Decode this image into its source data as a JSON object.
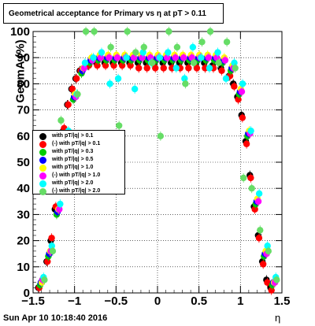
{
  "header": {
    "title": "Geometrical acceptance for Primary vs   η at pT > 0.11"
  },
  "footer": {
    "timestamp": "Sun Apr 10 10:18:40 2016"
  },
  "chart_data": {
    "type": "scatter",
    "title": "Geometrical acceptance for Primary vs   η at pT > 0.11",
    "xlabel": "η",
    "ylabel": "GeomA (%)",
    "xlim": [
      -1.5,
      1.5
    ],
    "ylim": [
      0,
      100
    ],
    "xticks": [
      -1.5,
      -1,
      -0.5,
      0,
      0.5,
      1,
      1.5
    ],
    "xtick_labels": [
      "−1.5",
      "−1",
      "−0.5",
      "0",
      "0.5",
      "1",
      "1.5"
    ],
    "yticks": [
      0,
      10,
      20,
      30,
      40,
      50,
      60,
      70,
      80,
      90,
      100
    ],
    "grid": true,
    "legend_position": "left-middle",
    "series": [
      {
        "name": "with pT/|q| > 0.1",
        "color": "#000000",
        "x": [
          -1.4,
          -1.35,
          -1.3,
          -1.25,
          -1.2,
          -1.15,
          -1.1,
          -1.05,
          -1.0,
          -0.95,
          -0.9,
          -0.8,
          -0.7,
          -0.6,
          -0.5,
          -0.4,
          -0.3,
          -0.2,
          -0.1,
          0.0,
          0.1,
          0.2,
          0.3,
          0.4,
          0.5,
          0.6,
          0.7,
          0.8,
          0.9,
          0.95,
          1.0,
          1.05,
          1.1,
          1.15,
          1.2,
          1.25,
          1.3,
          1.35,
          1.4
        ],
        "y": [
          2,
          5,
          12,
          20,
          32,
          48,
          62,
          72,
          78,
          82,
          85,
          87,
          88,
          88,
          88,
          88,
          88,
          88,
          88,
          88,
          88,
          88,
          88,
          88,
          88,
          88,
          87,
          86,
          83,
          80,
          75,
          68,
          58,
          45,
          33,
          22,
          12,
          5,
          2
        ]
      },
      {
        "name": "(-) with pT/|q| > 0.1",
        "color": "#ff0000",
        "x": [
          -1.4,
          -1.35,
          -1.3,
          -1.25,
          -1.2,
          -1.15,
          -1.1,
          -1.05,
          -1.0,
          -0.95,
          -0.9,
          -0.8,
          -0.7,
          -0.6,
          -0.5,
          -0.4,
          -0.3,
          -0.2,
          -0.1,
          0.0,
          0.1,
          0.2,
          0.3,
          0.4,
          0.5,
          0.6,
          0.7,
          0.8,
          0.9,
          0.95,
          1.0,
          1.05,
          1.1,
          1.15,
          1.2,
          1.25,
          1.3,
          1.35,
          1.4
        ],
        "y": [
          2,
          5,
          12,
          21,
          33,
          49,
          63,
          72,
          78,
          82,
          85,
          87,
          87,
          87,
          87,
          87,
          87,
          86,
          86,
          86,
          86,
          86,
          86,
          86,
          86,
          86,
          86,
          85,
          83,
          79,
          74,
          67,
          57,
          44,
          32,
          21,
          11,
          4,
          1
        ]
      },
      {
        "name": "with pT/|q| > 0.3",
        "color": "#00cc00",
        "x": [
          -1.4,
          -1.3,
          -1.2,
          -1.1,
          -1.0,
          -0.9,
          -0.8,
          -0.7,
          -0.6,
          -0.5,
          -0.4,
          -0.3,
          -0.2,
          -0.1,
          0.0,
          0.1,
          0.2,
          0.3,
          0.4,
          0.5,
          0.6,
          0.7,
          0.8,
          0.9,
          1.0,
          1.1,
          1.2,
          1.3,
          1.4
        ],
        "y": [
          3,
          14,
          30,
          58,
          74,
          84,
          88,
          89,
          89,
          89,
          89,
          89,
          89,
          89,
          89,
          89,
          89,
          89,
          89,
          89,
          89,
          89,
          88,
          85,
          76,
          60,
          34,
          14,
          3
        ]
      },
      {
        "name": "with pT/|q| > 0.5",
        "color": "#0000ff",
        "x": [
          -1.4,
          -1.3,
          -1.2,
          -1.1,
          -1.0,
          -0.9,
          -0.8,
          -0.7,
          -0.6,
          -0.5,
          -0.4,
          -0.3,
          -0.2,
          -0.1,
          0.0,
          0.1,
          0.2,
          0.3,
          0.4,
          0.5,
          0.6,
          0.7,
          0.8,
          0.9,
          1.0,
          1.1,
          1.2,
          1.3,
          1.4
        ],
        "y": [
          4,
          15,
          31,
          59,
          75,
          85,
          89,
          90,
          90,
          90,
          90,
          90,
          90,
          90,
          90,
          90,
          90,
          90,
          90,
          90,
          90,
          90,
          89,
          86,
          77,
          61,
          35,
          15,
          4
        ]
      },
      {
        "name": "with pT/|q| > 1.0",
        "color": "#ffff00",
        "x": [
          -1.4,
          -1.3,
          -1.2,
          -1.1,
          -1.0,
          -0.9,
          -0.8,
          -0.7,
          -0.6,
          -0.5,
          -0.4,
          -0.3,
          -0.2,
          -0.1,
          0.0,
          0.1,
          0.2,
          0.3,
          0.4,
          0.5,
          0.6,
          0.7,
          0.8,
          0.9,
          1.0,
          1.1,
          1.2,
          1.3,
          1.4
        ],
        "y": [
          4,
          16,
          32,
          60,
          76,
          86,
          90,
          91,
          91,
          91,
          91,
          91,
          91,
          91,
          91,
          91,
          91,
          91,
          91,
          91,
          91,
          91,
          90,
          87,
          78,
          62,
          36,
          16,
          4
        ]
      },
      {
        "name": "(-) with pT/|q| > 1.0",
        "color": "#ff00ff",
        "x": [
          -1.4,
          -1.3,
          -1.2,
          -1.1,
          -1.0,
          -0.9,
          -0.8,
          -0.7,
          -0.6,
          -0.5,
          -0.4,
          -0.3,
          -0.2,
          -0.1,
          0.0,
          0.1,
          0.2,
          0.3,
          0.4,
          0.5,
          0.6,
          0.7,
          0.8,
          0.9,
          1.0,
          1.1,
          1.2,
          1.3,
          1.4
        ],
        "y": [
          5,
          16,
          32,
          60,
          75,
          86,
          89,
          90,
          90,
          90,
          90,
          90,
          90,
          90,
          90,
          90,
          90,
          90,
          90,
          90,
          90,
          90,
          89,
          86,
          77,
          61,
          35,
          15,
          4
        ]
      },
      {
        "name": "with pT/|q| > 2.0",
        "color": "#00ffff",
        "x": [
          -1.4,
          -1.3,
          -1.2,
          -1.1,
          -1.0,
          -0.9,
          -0.8,
          -0.7,
          -0.6,
          -0.5,
          -0.4,
          -0.3,
          -0.2,
          -0.1,
          0.0,
          0.1,
          0.2,
          0.3,
          0.4,
          0.5,
          0.6,
          0.7,
          0.8,
          0.9,
          1.0,
          1.1,
          1.2,
          1.3,
          1.4
        ],
        "y": [
          6,
          18,
          34,
          62,
          76,
          88,
          90,
          92,
          80,
          82,
          90,
          78,
          92,
          88,
          90,
          92,
          86,
          82,
          94,
          90,
          86,
          92,
          82,
          88,
          80,
          62,
          38,
          18,
          6
        ]
      },
      {
        "name": "(-) with pT/|q| > 2.0",
        "color": "#66dd66",
        "x": [
          -1.4,
          -1.3,
          -1.2,
          -1.1,
          -1.0,
          -0.9,
          -0.8,
          -0.7,
          -0.6,
          -0.5,
          -0.4,
          -0.3,
          -0.2,
          -0.1,
          0.0,
          0.1,
          0.2,
          0.3,
          0.4,
          0.5,
          0.6,
          0.7,
          0.8,
          0.9,
          1.0,
          1.1,
          1.2,
          1.3,
          1.4
        ],
        "y": [
          5,
          16,
          66,
          60,
          76,
          100,
          100,
          43,
          94,
          64,
          100,
          92,
          94,
          88,
          60,
          100,
          94,
          80,
          88,
          96,
          100,
          88,
          96,
          86,
          44,
          40,
          24,
          16,
          5
        ]
      }
    ]
  }
}
